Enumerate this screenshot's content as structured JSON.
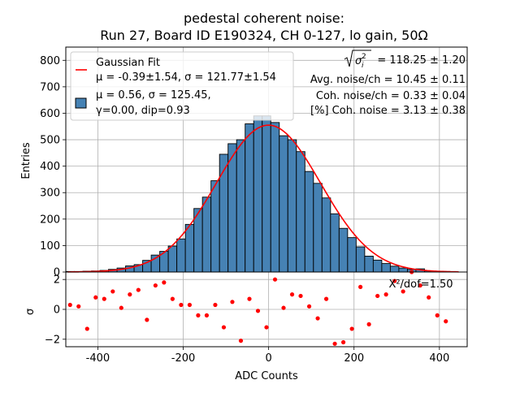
{
  "chart_data": {
    "type": "bar",
    "title_line1": "pedestal coherent noise:",
    "title_line2": "Run 27, Board ID E190324, CH 0-127, lo gain, 50Ω",
    "xlabel": "ADC Counts",
    "ylabel_top": "Entries",
    "ylabel_bottom": "σ",
    "xlim": [
      -475,
      465
    ],
    "ylim_top": [
      0,
      850
    ],
    "ylim_bottom": [
      -2.5,
      2.5
    ],
    "x_ticks": [
      "-400",
      "-200",
      "0",
      "200",
      "400"
    ],
    "x_tick_values": [
      -400,
      -200,
      0,
      200,
      400
    ],
    "y_ticks_top": [
      "0",
      "100",
      "200",
      "300",
      "400",
      "500",
      "600",
      "700",
      "800"
    ],
    "y_tick_values_top": [
      0,
      100,
      200,
      300,
      400,
      500,
      600,
      700,
      800
    ],
    "y_ticks_bottom": [
      "−2",
      "0",
      "2"
    ],
    "y_tick_values_bottom": [
      -2,
      0,
      2
    ],
    "grid": true,
    "legend_position": "top-left",
    "histogram": {
      "bin_edges": [
        -475,
        -455,
        -435,
        -415,
        -395,
        -375,
        -355,
        -335,
        -315,
        -295,
        -275,
        -255,
        -235,
        -215,
        -195,
        -175,
        -155,
        -135,
        -115,
        -95,
        -75,
        -55,
        -35,
        -15,
        5,
        25,
        45,
        65,
        85,
        105,
        125,
        145,
        165,
        185,
        205,
        225,
        245,
        265,
        285,
        305,
        325,
        345,
        365,
        385,
        405,
        425
      ],
      "counts": [
        2,
        2,
        3,
        4,
        6,
        10,
        15,
        23,
        28,
        44,
        64,
        78,
        98,
        125,
        180,
        240,
        283,
        345,
        445,
        485,
        500,
        560,
        590,
        590,
        565,
        515,
        500,
        455,
        380,
        335,
        280,
        220,
        165,
        130,
        95,
        60,
        45,
        32,
        22,
        15,
        10,
        12,
        4,
        2,
        2
      ],
      "fill_color": "#4682b4",
      "edge_color": "#000000"
    },
    "fit": {
      "mu": -0.39,
      "sigma": 121.77,
      "amplitude": 555,
      "color": "#ff0000"
    },
    "residuals": {
      "x": [
        -465,
        -445,
        -425,
        -405,
        -385,
        -365,
        -345,
        -325,
        -305,
        -285,
        -265,
        -245,
        -225,
        -205,
        -185,
        -165,
        -145,
        -125,
        -105,
        -85,
        -65,
        -45,
        -25,
        -5,
        15,
        35,
        55,
        75,
        95,
        115,
        135,
        155,
        175,
        195,
        215,
        235,
        255,
        275,
        295,
        315,
        335,
        355,
        375,
        395,
        415
      ],
      "y": [
        0.3,
        0.2,
        -1.3,
        0.8,
        0.7,
        1.2,
        0.1,
        1.0,
        1.3,
        -0.7,
        1.6,
        1.8,
        0.7,
        0.3,
        0.3,
        -0.4,
        -0.4,
        0.3,
        -1.2,
        0.5,
        -2.1,
        0.7,
        -0.1,
        -1.2,
        2.0,
        0.1,
        1.0,
        0.9,
        0.2,
        -0.6,
        0.7,
        -2.3,
        -2.2,
        -1.3,
        1.5,
        -1.0,
        0.9,
        1.0,
        1.9,
        1.2,
        2.5,
        1.6,
        0.8,
        -0.4,
        -0.8
      ],
      "color": "#ff0000"
    },
    "legend": {
      "fit_label_1": "Gaussian Fit",
      "fit_label_2": "μ = -0.39±1.54, σ = 121.77±1.54",
      "hist_label_1": "μ = 0.56, σ = 125.45,",
      "hist_label_2": "γ=0.00, dip=0.93"
    },
    "stats": {
      "sigma_sum_value": "= 118.25 ± 1.20",
      "avg_noise": "Avg. noise/ch = 10.45 ± 0.11",
      "coh_noise": "Coh. noise/ch = 0.33 ± 0.04",
      "coh_percent": "[%] Coh. noise = 3.13  ± 0.38"
    },
    "chi2_label": "X²/dof=1.50"
  }
}
